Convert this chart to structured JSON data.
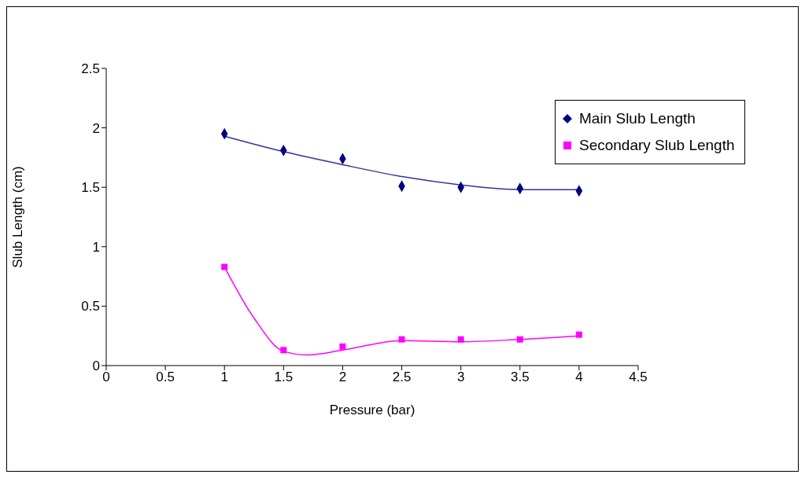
{
  "chart_data": {
    "type": "scatter",
    "xlabel": "Pressure (bar)",
    "ylabel": "Slub Length (cm)",
    "xlim": [
      0,
      4.5
    ],
    "xticks": [
      0,
      0.5,
      1,
      1.5,
      2,
      2.5,
      3,
      3.5,
      4,
      4.5
    ],
    "ylim": [
      0,
      2.5
    ],
    "yticks": [
      0,
      0.5,
      1,
      1.5,
      2,
      2.5
    ],
    "grid": false,
    "legend": "right",
    "series": [
      {
        "name": "Main Slub Length",
        "marker": "diamond",
        "color": "#000080",
        "x": [
          1,
          1.5,
          2,
          2.5,
          3,
          3.5,
          4
        ],
        "values": [
          1.95,
          1.81,
          1.74,
          1.51,
          1.5,
          1.49,
          1.47
        ]
      },
      {
        "name": "Secondary Slub Length",
        "marker": "square",
        "color": "#ff00ff",
        "x": [
          1,
          1.5,
          2,
          2.5,
          3,
          3.5,
          4
        ],
        "values": [
          0.83,
          0.13,
          0.16,
          0.22,
          0.22,
          0.22,
          0.26
        ]
      },
      {
        "type": "line",
        "color": "#333399",
        "x": [
          1,
          1.5,
          2,
          2.5,
          3,
          3.5,
          4
        ],
        "values": [
          1.93,
          1.8,
          1.69,
          1.59,
          1.52,
          1.48,
          1.48
        ]
      },
      {
        "type": "line",
        "color": "#ff00ff",
        "x": [
          1,
          1.25,
          1.5,
          1.7,
          2,
          2.5,
          3,
          3.5,
          4
        ],
        "values": [
          0.83,
          0.4,
          0.12,
          0.09,
          0.13,
          0.21,
          0.2,
          0.22,
          0.25
        ]
      }
    ]
  }
}
